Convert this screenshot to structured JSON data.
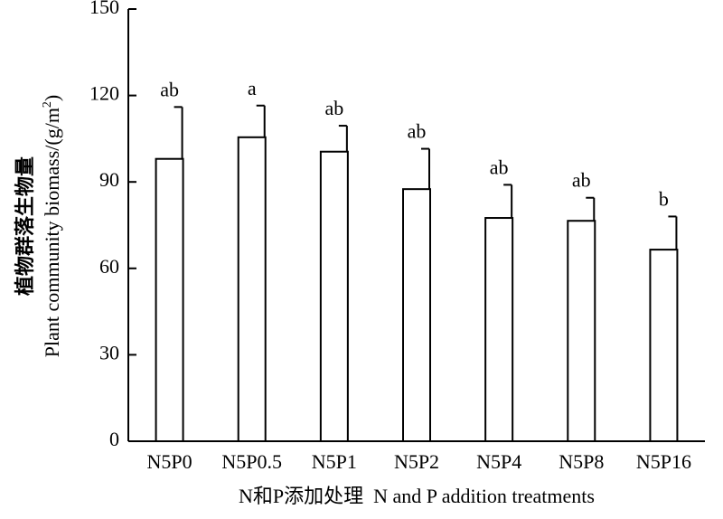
{
  "chart_data": {
    "type": "bar",
    "categories": [
      "N5P0",
      "N5P0.5",
      "N5P1",
      "N5P2",
      "N5P4",
      "N5P8",
      "N5P16"
    ],
    "values": [
      98,
      105.5,
      100.5,
      87.5,
      77.5,
      76.5,
      66.5
    ],
    "error_upper": [
      116,
      116.5,
      109.5,
      101.5,
      89,
      84.5,
      78
    ],
    "significance": [
      "ab",
      "a",
      "ab",
      "ab",
      "ab",
      "ab",
      "b"
    ],
    "ylim": [
      0,
      150
    ],
    "yticks": [
      "0",
      "30",
      "60",
      "90",
      "120",
      "150"
    ],
    "ytick_values": [
      0,
      30,
      60,
      90,
      120,
      150
    ],
    "ylabel_cn": "植物群落生物量",
    "ylabel_en_prefix": "Plant community biomass/(g/m",
    "ylabel_en_sup": "2",
    "ylabel_en_suffix": ")",
    "xlabel": "N和P添加处理  N and P addition treatments",
    "grid": false,
    "bar_fill": "#ffffff",
    "bar_stroke": "#000000"
  }
}
